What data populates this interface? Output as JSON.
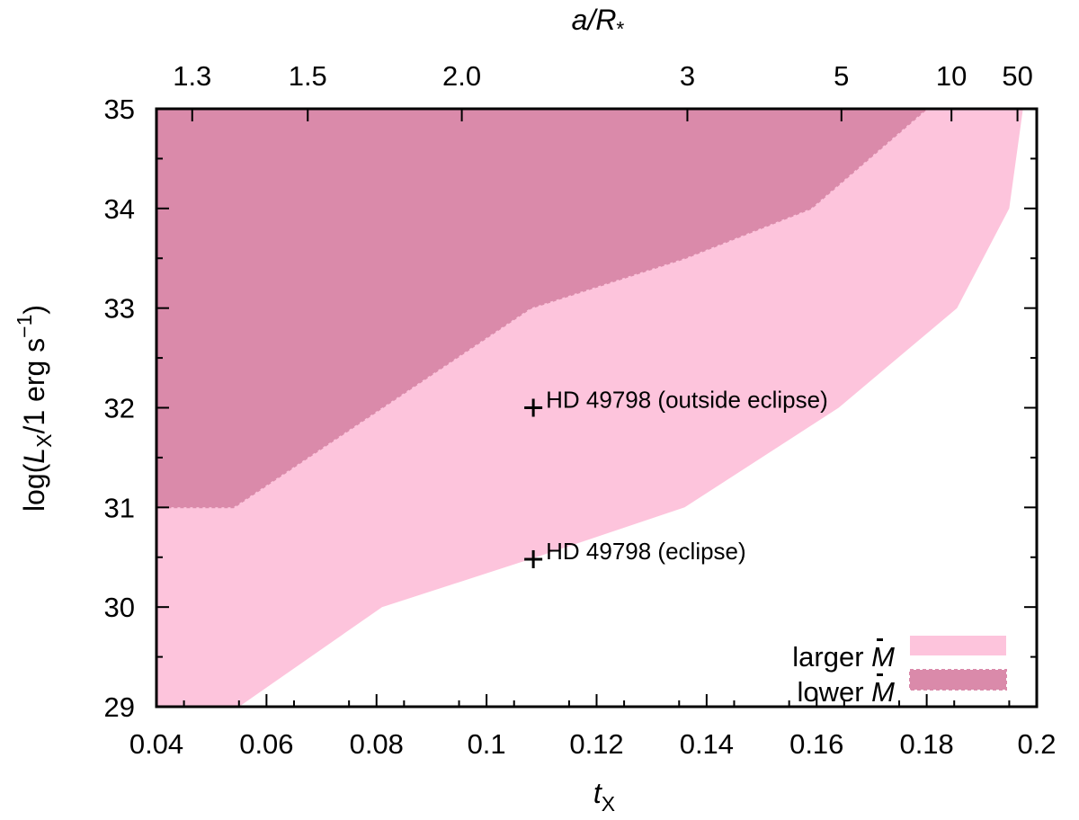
{
  "chart_data": {
    "type": "area",
    "x_axis": {
      "label_main": "t",
      "label_sub": "X",
      "range": [
        0.04,
        0.2
      ],
      "ticks": [
        "0.04",
        "0.06",
        "0.08",
        "0.1",
        "0.12",
        "0.14",
        "0.16",
        "0.18",
        "0.2"
      ]
    },
    "x2_axis": {
      "label_a": "a/R",
      "label_sub": "*",
      "ticks": [
        {
          "label": "1.3",
          "t": 0.0465
        },
        {
          "label": "1.5",
          "t": 0.0675
        },
        {
          "label": "2.0",
          "t": 0.0955
        },
        {
          "label": "3",
          "t": 0.1365
        },
        {
          "label": "5",
          "t": 0.1645
        },
        {
          "label": "10",
          "t": 0.1845
        },
        {
          "label": "50",
          "t": 0.1965
        }
      ]
    },
    "y_axis": {
      "label_pre": "log(",
      "label_L": "L",
      "label_sub": "X",
      "label_mid": "/1 erg s",
      "label_sup": "−1",
      "label_post": ")",
      "range": [
        29,
        35
      ],
      "ticks": [
        "29",
        "30",
        "31",
        "32",
        "33",
        "34",
        "35"
      ]
    },
    "series": [
      {
        "name": "larger Ṁ",
        "color": "#fdc4dc",
        "polygon": [
          [
            0.04,
            29
          ],
          [
            0.04,
            31
          ],
          [
            0.054,
            31
          ],
          [
            0.081,
            32
          ],
          [
            0.108,
            33
          ],
          [
            0.136,
            33.5
          ],
          [
            0.159,
            34
          ],
          [
            0.18,
            35
          ],
          [
            0.1975,
            35
          ],
          [
            0.195,
            34
          ],
          [
            0.1855,
            33
          ],
          [
            0.164,
            32
          ],
          [
            0.136,
            31
          ],
          [
            0.109,
            30.5
          ],
          [
            0.081,
            30
          ],
          [
            0.055,
            29
          ]
        ]
      },
      {
        "name": "lower Ṁ",
        "color": "#da8aaa",
        "polygon": [
          [
            0.04,
            31
          ],
          [
            0.04,
            35
          ],
          [
            0.18,
            35
          ],
          [
            0.159,
            34
          ],
          [
            0.136,
            33.5
          ],
          [
            0.108,
            33
          ],
          [
            0.081,
            32
          ],
          [
            0.054,
            31
          ]
        ]
      }
    ],
    "points": [
      {
        "label": "HD 49798 (outside eclipse)",
        "x": 0.1085,
        "y": 32.0
      },
      {
        "label": "HD 49798 (eclipse)",
        "x": 0.1085,
        "y": 30.48
      }
    ],
    "legend": {
      "position": "bottom-right",
      "entries": [
        {
          "text": "larger ",
          "symbol": "M",
          "color": "#fdc4dc"
        },
        {
          "text": "lower ",
          "symbol": "M",
          "color": "#da8aaa"
        }
      ]
    },
    "grid": false
  }
}
